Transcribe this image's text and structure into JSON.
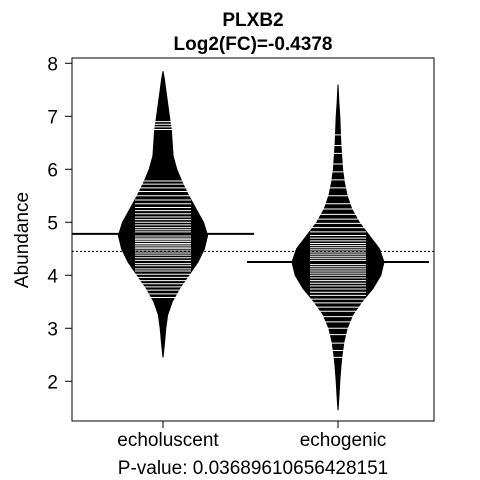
{
  "chart_data": {
    "type": "beanplot",
    "title": "PLXB2",
    "subtitle": "Log2(FC)=-0.4378",
    "xlabel": "P-value: 0.03689610656428151",
    "ylabel": "Abundance",
    "categories": [
      "echoluscent",
      "echogenic"
    ],
    "yticks": [
      2,
      3,
      4,
      5,
      6,
      7,
      8
    ],
    "ylim": [
      1.25,
      8.1
    ],
    "overall_mean": 4.45,
    "beans": [
      {
        "category": "echoluscent",
        "mean": 4.78,
        "min": 2.45,
        "max": 7.85,
        "density": [
          [
            2.45,
            0.0
          ],
          [
            2.7,
            0.03
          ],
          [
            3.0,
            0.06
          ],
          [
            3.25,
            0.1
          ],
          [
            3.5,
            0.2
          ],
          [
            3.75,
            0.36
          ],
          [
            4.0,
            0.56
          ],
          [
            4.25,
            0.76
          ],
          [
            4.5,
            0.9
          ],
          [
            4.75,
            0.97
          ],
          [
            5.0,
            0.88
          ],
          [
            5.25,
            0.72
          ],
          [
            5.5,
            0.56
          ],
          [
            5.75,
            0.42
          ],
          [
            6.0,
            0.3
          ],
          [
            6.25,
            0.22
          ],
          [
            6.5,
            0.2
          ],
          [
            6.75,
            0.18
          ],
          [
            7.0,
            0.14
          ],
          [
            7.25,
            0.1
          ],
          [
            7.5,
            0.06
          ],
          [
            7.7,
            0.03
          ],
          [
            7.85,
            0.0
          ]
        ],
        "values": [
          3.58,
          3.65,
          3.72,
          3.78,
          3.84,
          3.9,
          3.96,
          4.02,
          4.08,
          4.12,
          4.18,
          4.22,
          4.28,
          4.33,
          4.38,
          4.42,
          4.46,
          4.5,
          4.53,
          4.57,
          4.6,
          4.64,
          4.67,
          4.7,
          4.74,
          4.78,
          4.82,
          4.86,
          4.9,
          4.95,
          5.0,
          5.05,
          5.1,
          5.16,
          5.22,
          5.28,
          5.35,
          5.42,
          5.5,
          5.58,
          5.65,
          5.72,
          5.78,
          6.75,
          6.8,
          6.85,
          6.9
        ]
      },
      {
        "category": "echogenic",
        "mean": 4.25,
        "min": 1.45,
        "max": 7.6,
        "density": [
          [
            1.45,
            0.0
          ],
          [
            1.7,
            0.02
          ],
          [
            2.0,
            0.04
          ],
          [
            2.25,
            0.06
          ],
          [
            2.5,
            0.09
          ],
          [
            2.75,
            0.13
          ],
          [
            3.0,
            0.2
          ],
          [
            3.25,
            0.32
          ],
          [
            3.5,
            0.52
          ],
          [
            3.75,
            0.76
          ],
          [
            4.0,
            0.93
          ],
          [
            4.25,
            1.0
          ],
          [
            4.5,
            0.9
          ],
          [
            4.75,
            0.68
          ],
          [
            5.0,
            0.46
          ],
          [
            5.25,
            0.3
          ],
          [
            5.5,
            0.2
          ],
          [
            5.75,
            0.14
          ],
          [
            6.0,
            0.1
          ],
          [
            6.25,
            0.08
          ],
          [
            6.5,
            0.06
          ],
          [
            6.75,
            0.05
          ],
          [
            7.0,
            0.04
          ],
          [
            7.25,
            0.02
          ],
          [
            7.6,
            0.0
          ]
        ],
        "values": [
          2.45,
          2.58,
          2.72,
          2.88,
          3.0,
          3.12,
          3.22,
          3.32,
          3.4,
          3.48,
          3.55,
          3.62,
          3.68,
          3.74,
          3.8,
          3.85,
          3.9,
          3.95,
          4.0,
          4.04,
          4.08,
          4.12,
          4.16,
          4.2,
          4.24,
          4.28,
          4.32,
          4.36,
          4.4,
          4.44,
          4.48,
          4.52,
          4.56,
          4.6,
          4.65,
          4.7,
          4.75,
          4.82,
          4.9,
          4.98,
          5.06,
          5.15,
          5.25,
          5.35,
          5.5,
          5.65,
          5.8,
          5.95,
          6.1,
          6.3,
          6.45,
          6.65
        ]
      }
    ],
    "grid": false,
    "legend": "none"
  }
}
